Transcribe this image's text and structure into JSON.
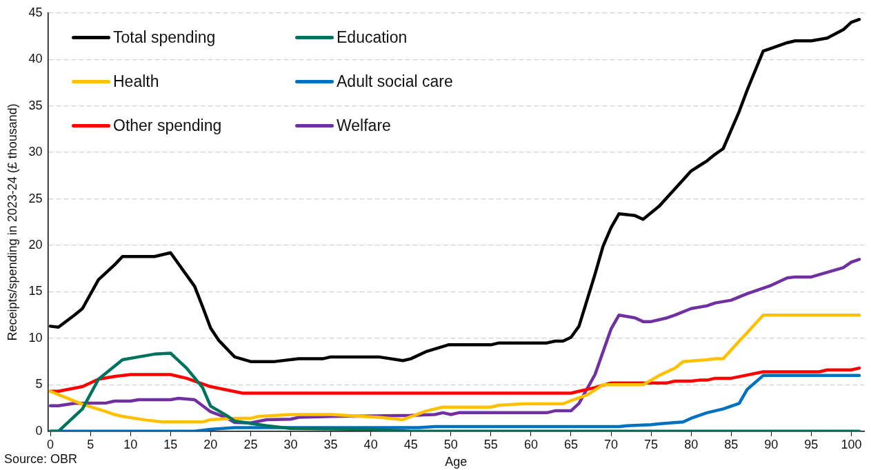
{
  "chart_data": {
    "type": "line",
    "xlabel": "Age",
    "ylabel": "Receipts/spending in 2023-24 (£ thousand)",
    "annotations": [
      "Source: OBR"
    ],
    "xlim": [
      -0.3,
      101.6
    ],
    "xticks": [
      0,
      5,
      10,
      15,
      20,
      25,
      30,
      35,
      40,
      45,
      50,
      55,
      60,
      65,
      70,
      75,
      80,
      85,
      90,
      95,
      100
    ],
    "ylim": [
      0,
      45
    ],
    "yticks": [
      0,
      5,
      10,
      15,
      20,
      25,
      30,
      35,
      40,
      45
    ],
    "grid": "y",
    "legend": "top left",
    "series": [
      {
        "name": "Total spending",
        "color": "#000000",
        "x": [
          0,
          1,
          3,
          4,
          6,
          8,
          9,
          13,
          15,
          16,
          18,
          19,
          20,
          21,
          23,
          25,
          28,
          31,
          34,
          35,
          41,
          44,
          45,
          47,
          49.7,
          55,
          56,
          62,
          63,
          64,
          65,
          66,
          67,
          68,
          69,
          70,
          71,
          73,
          74,
          76,
          78,
          80,
          82,
          83,
          84,
          86,
          87,
          89,
          90,
          92,
          93,
          95,
          97,
          99,
          100,
          101
        ],
        "values": [
          11.3,
          11.2,
          12.5,
          13.2,
          16.3,
          17.9,
          18.8,
          18.8,
          19.2,
          18.0,
          15.6,
          13.4,
          11.1,
          9.8,
          8.0,
          7.5,
          7.5,
          7.8,
          7.8,
          8.0,
          8.0,
          7.6,
          7.8,
          8.6,
          9.3,
          9.3,
          9.5,
          9.5,
          9.7,
          9.7,
          10.1,
          11.3,
          14.1,
          16.9,
          19.9,
          21.9,
          23.4,
          23.2,
          22.8,
          24.2,
          26.1,
          28.0,
          29.1,
          29.8,
          30.4,
          34.4,
          36.7,
          40.9,
          41.2,
          41.8,
          42.0,
          42.0,
          42.3,
          43.2,
          44.0,
          44.3
        ]
      },
      {
        "name": "Education",
        "color": "#00735e",
        "x": [
          0,
          1,
          4,
          6,
          9,
          11,
          13,
          15,
          17,
          19,
          20,
          22,
          23,
          27,
          30,
          40,
          45,
          101
        ],
        "values": [
          0,
          0,
          2.4,
          5.6,
          7.7,
          8.0,
          8.3,
          8.4,
          6.8,
          4.7,
          2.7,
          1.7,
          1.1,
          0.6,
          0.3,
          0.2,
          0,
          0
        ]
      },
      {
        "name": "Health",
        "color": "#ffc000",
        "x": [
          0,
          4,
          7,
          8,
          9,
          12,
          14,
          19,
          20,
          23,
          25,
          26,
          30,
          35,
          41,
          44,
          47,
          49,
          55,
          56,
          59,
          64,
          65,
          67,
          69,
          74,
          76,
          78,
          79,
          82,
          83,
          84,
          86,
          87,
          89,
          101
        ],
        "values": [
          4.3,
          2.9,
          2.1,
          1.8,
          1.6,
          1.2,
          1.0,
          1.0,
          1.25,
          1.4,
          1.4,
          1.6,
          1.8,
          1.8,
          1.5,
          1.25,
          2.2,
          2.6,
          2.6,
          2.8,
          2.95,
          2.95,
          3.3,
          3.9,
          5.0,
          5.0,
          6.0,
          6.8,
          7.5,
          7.7,
          7.8,
          7.8,
          9.7,
          10.6,
          12.5,
          12.5
        ]
      },
      {
        "name": "Adult social care",
        "color": "#0070c0",
        "x": [
          0,
          18,
          20,
          23,
          46,
          48,
          71,
          72,
          75,
          76,
          79,
          80,
          82,
          84,
          86,
          87,
          89,
          101
        ],
        "values": [
          0,
          0,
          0.2,
          0.4,
          0.4,
          0.5,
          0.5,
          0.6,
          0.7,
          0.8,
          1.0,
          1.4,
          2.0,
          2.4,
          3.0,
          4.5,
          6.0,
          6.0
        ]
      },
      {
        "name": "Other spending",
        "color": "#ff0000",
        "x": [
          0,
          1,
          4,
          6,
          8,
          10,
          15,
          17,
          20,
          24,
          65,
          66,
          68,
          70,
          71,
          77,
          78,
          80,
          81,
          82,
          83,
          85,
          89,
          96,
          97,
          100,
          101
        ],
        "values": [
          4.3,
          4.3,
          4.8,
          5.6,
          5.9,
          6.1,
          6.1,
          5.7,
          4.8,
          4.1,
          4.1,
          4.3,
          4.7,
          5.2,
          5.2,
          5.2,
          5.4,
          5.4,
          5.5,
          5.5,
          5.7,
          5.7,
          6.4,
          6.4,
          6.6,
          6.6,
          6.8
        ]
      },
      {
        "name": "Welfare",
        "color": "#7030a0",
        "x": [
          0,
          1,
          3,
          7,
          8,
          10,
          11,
          15,
          16,
          18,
          19,
          20,
          22,
          23,
          25,
          27,
          30,
          31,
          35,
          45,
          48,
          49,
          50,
          51,
          62,
          63,
          65,
          66,
          68,
          70,
          71,
          73,
          74,
          75,
          77,
          78,
          80,
          82,
          83,
          85,
          87,
          90,
          92,
          93,
          95,
          97,
          99,
          100,
          101
        ],
        "values": [
          2.75,
          2.75,
          3.0,
          3.05,
          3.25,
          3.25,
          3.4,
          3.4,
          3.55,
          3.4,
          2.75,
          2.1,
          1.45,
          0.95,
          0.9,
          1.25,
          1.3,
          1.5,
          1.6,
          1.7,
          1.8,
          2.0,
          1.8,
          2.0,
          2.0,
          2.2,
          2.2,
          3.0,
          6.1,
          11.0,
          12.5,
          12.2,
          11.8,
          11.8,
          12.2,
          12.5,
          13.2,
          13.5,
          13.8,
          14.1,
          14.8,
          15.7,
          16.5,
          16.6,
          16.6,
          17.1,
          17.6,
          18.2,
          18.5
        ]
      }
    ]
  }
}
